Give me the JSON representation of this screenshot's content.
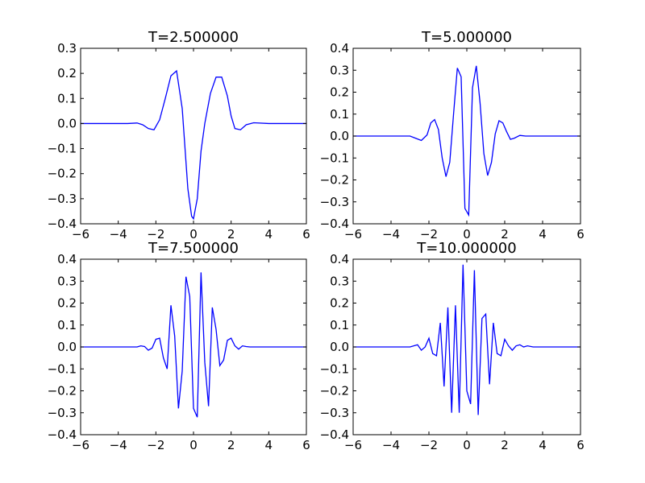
{
  "chart_data": [
    {
      "type": "line",
      "title": "T=2.500000",
      "xlim": [
        -6,
        6
      ],
      "ylim": [
        -0.4,
        0.3
      ],
      "xticks": [
        -6,
        -4,
        -2,
        0,
        2,
        4,
        6
      ],
      "yticks": [
        -0.4,
        -0.3,
        -0.2,
        -0.1,
        0.0,
        0.1,
        0.2,
        0.3
      ],
      "xtick_labels": [
        "−6",
        "−4",
        "−2",
        "0",
        "2",
        "4",
        "6"
      ],
      "ytick_labels": [
        "−0.4",
        "−0.3",
        "−0.2",
        "−0.1",
        "0.0",
        "0.1",
        "0.2",
        "0.3"
      ],
      "series": [
        {
          "color": "#0000ff",
          "x": [
            -6,
            -5,
            -4,
            -3.5,
            -3,
            -2.7,
            -2.4,
            -2.1,
            -1.8,
            -1.5,
            -1.2,
            -0.9,
            -0.6,
            -0.3,
            -0.1,
            0.0,
            0.2,
            0.4,
            0.6,
            0.9,
            1.2,
            1.5,
            1.8,
            2.0,
            2.2,
            2.5,
            2.8,
            3.2,
            4,
            5,
            6
          ],
          "y": [
            0.0,
            0.0,
            0.0,
            0.0,
            0.002,
            -0.005,
            -0.02,
            -0.025,
            0.015,
            0.1,
            0.19,
            0.21,
            0.06,
            -0.26,
            -0.37,
            -0.38,
            -0.3,
            -0.11,
            0.0,
            0.12,
            0.185,
            0.185,
            0.11,
            0.03,
            -0.02,
            -0.025,
            -0.005,
            0.003,
            0.0,
            0.0,
            0.0
          ]
        }
      ]
    },
    {
      "type": "line",
      "title": "T=5.000000",
      "xlim": [
        -6,
        6
      ],
      "ylim": [
        -0.4,
        0.4
      ],
      "xticks": [
        -6,
        -4,
        -2,
        0,
        2,
        4,
        6
      ],
      "yticks": [
        -0.4,
        -0.3,
        -0.2,
        -0.1,
        0.0,
        0.1,
        0.2,
        0.3,
        0.4
      ],
      "xtick_labels": [
        "−6",
        "−4",
        "−2",
        "0",
        "2",
        "4",
        "6"
      ],
      "ytick_labels": [
        "−0.4",
        "−0.3",
        "−0.2",
        "−0.1",
        "0.0",
        "0.1",
        "0.2",
        "0.3",
        "0.4"
      ],
      "series": [
        {
          "color": "#0000ff",
          "x": [
            -6,
            -5,
            -4,
            -3,
            -2.7,
            -2.4,
            -2.1,
            -1.9,
            -1.7,
            -1.5,
            -1.3,
            -1.1,
            -0.9,
            -0.7,
            -0.5,
            -0.3,
            -0.1,
            0.1,
            0.3,
            0.5,
            0.7,
            0.9,
            1.1,
            1.3,
            1.5,
            1.7,
            1.9,
            2.1,
            2.3,
            2.5,
            2.8,
            3.1,
            4,
            5,
            6
          ],
          "y": [
            0.0,
            0.0,
            0.0,
            0.0,
            -0.01,
            -0.02,
            0.005,
            0.06,
            0.075,
            0.03,
            -0.1,
            -0.185,
            -0.12,
            0.1,
            0.31,
            0.27,
            -0.33,
            -0.36,
            0.22,
            0.32,
            0.15,
            -0.08,
            -0.18,
            -0.12,
            0.01,
            0.07,
            0.06,
            0.02,
            -0.015,
            -0.01,
            0.003,
            0.0,
            0.0,
            0.0,
            0.0
          ]
        }
      ]
    },
    {
      "type": "line",
      "title": "T=7.500000",
      "xlim": [
        -6,
        6
      ],
      "ylim": [
        -0.4,
        0.4
      ],
      "xticks": [
        -6,
        -4,
        -2,
        0,
        2,
        4,
        6
      ],
      "yticks": [
        -0.4,
        -0.3,
        -0.2,
        -0.1,
        0.0,
        0.1,
        0.2,
        0.3,
        0.4
      ],
      "xtick_labels": [
        "−6",
        "−4",
        "−2",
        "0",
        "2",
        "4",
        "6"
      ],
      "ytick_labels": [
        "−0.4",
        "−0.3",
        "−0.2",
        "−0.1",
        "0.0",
        "0.1",
        "0.2",
        "0.3",
        "0.4"
      ],
      "series": [
        {
          "color": "#0000ff",
          "x": [
            -6,
            -4,
            -3,
            -2.8,
            -2.6,
            -2.4,
            -2.2,
            -2.0,
            -1.8,
            -1.6,
            -1.4,
            -1.2,
            -1.0,
            -0.8,
            -0.6,
            -0.4,
            -0.2,
            0.0,
            0.2,
            0.4,
            0.6,
            0.8,
            1.0,
            1.2,
            1.4,
            1.6,
            1.8,
            2.0,
            2.2,
            2.4,
            2.6,
            2.8,
            3.0,
            3.5,
            4,
            5,
            6
          ],
          "y": [
            0.0,
            0.0,
            0.0,
            0.005,
            0.002,
            -0.015,
            -0.005,
            0.035,
            0.04,
            -0.05,
            -0.1,
            0.19,
            0.05,
            -0.28,
            -0.11,
            0.32,
            0.23,
            -0.28,
            -0.32,
            0.34,
            -0.07,
            -0.27,
            0.18,
            0.08,
            -0.085,
            -0.06,
            0.03,
            0.04,
            0.005,
            -0.01,
            0.005,
            0.002,
            0.0,
            0.0,
            0.0,
            0.0,
            0.0
          ]
        }
      ]
    },
    {
      "type": "line",
      "title": "T=10.000000",
      "xlim": [
        -6,
        6
      ],
      "ylim": [
        -0.4,
        0.4
      ],
      "xticks": [
        -6,
        -4,
        -2,
        0,
        2,
        4,
        6
      ],
      "yticks": [
        -0.4,
        -0.3,
        -0.2,
        -0.1,
        0.0,
        0.1,
        0.2,
        0.3,
        0.4
      ],
      "xtick_labels": [
        "−6",
        "−4",
        "−2",
        "0",
        "2",
        "4",
        "6"
      ],
      "ytick_labels": [
        "−0.4",
        "−0.3",
        "−0.2",
        "−0.1",
        "0.0",
        "0.1",
        "0.2",
        "0.3",
        "0.4"
      ],
      "series": [
        {
          "color": "#0000ff",
          "x": [
            -6,
            -4,
            -3,
            -2.8,
            -2.6,
            -2.4,
            -2.2,
            -2.0,
            -1.8,
            -1.6,
            -1.4,
            -1.2,
            -1.0,
            -0.8,
            -0.6,
            -0.4,
            -0.2,
            0.0,
            0.2,
            0.4,
            0.6,
            0.8,
            1.0,
            1.2,
            1.4,
            1.6,
            1.8,
            2.0,
            2.2,
            2.4,
            2.6,
            2.8,
            3.0,
            3.2,
            3.5,
            4,
            5,
            6
          ],
          "y": [
            0.0,
            0.0,
            0.0,
            0.005,
            0.01,
            -0.015,
            0.0,
            0.04,
            -0.03,
            -0.04,
            0.11,
            -0.18,
            0.18,
            -0.3,
            0.19,
            -0.3,
            0.375,
            -0.2,
            -0.26,
            0.35,
            -0.31,
            0.13,
            0.15,
            -0.17,
            0.11,
            -0.03,
            -0.04,
            0.035,
            0.005,
            -0.015,
            0.005,
            0.01,
            0.0,
            0.005,
            0.0,
            0.0,
            0.0,
            0.0
          ]
        }
      ]
    }
  ]
}
